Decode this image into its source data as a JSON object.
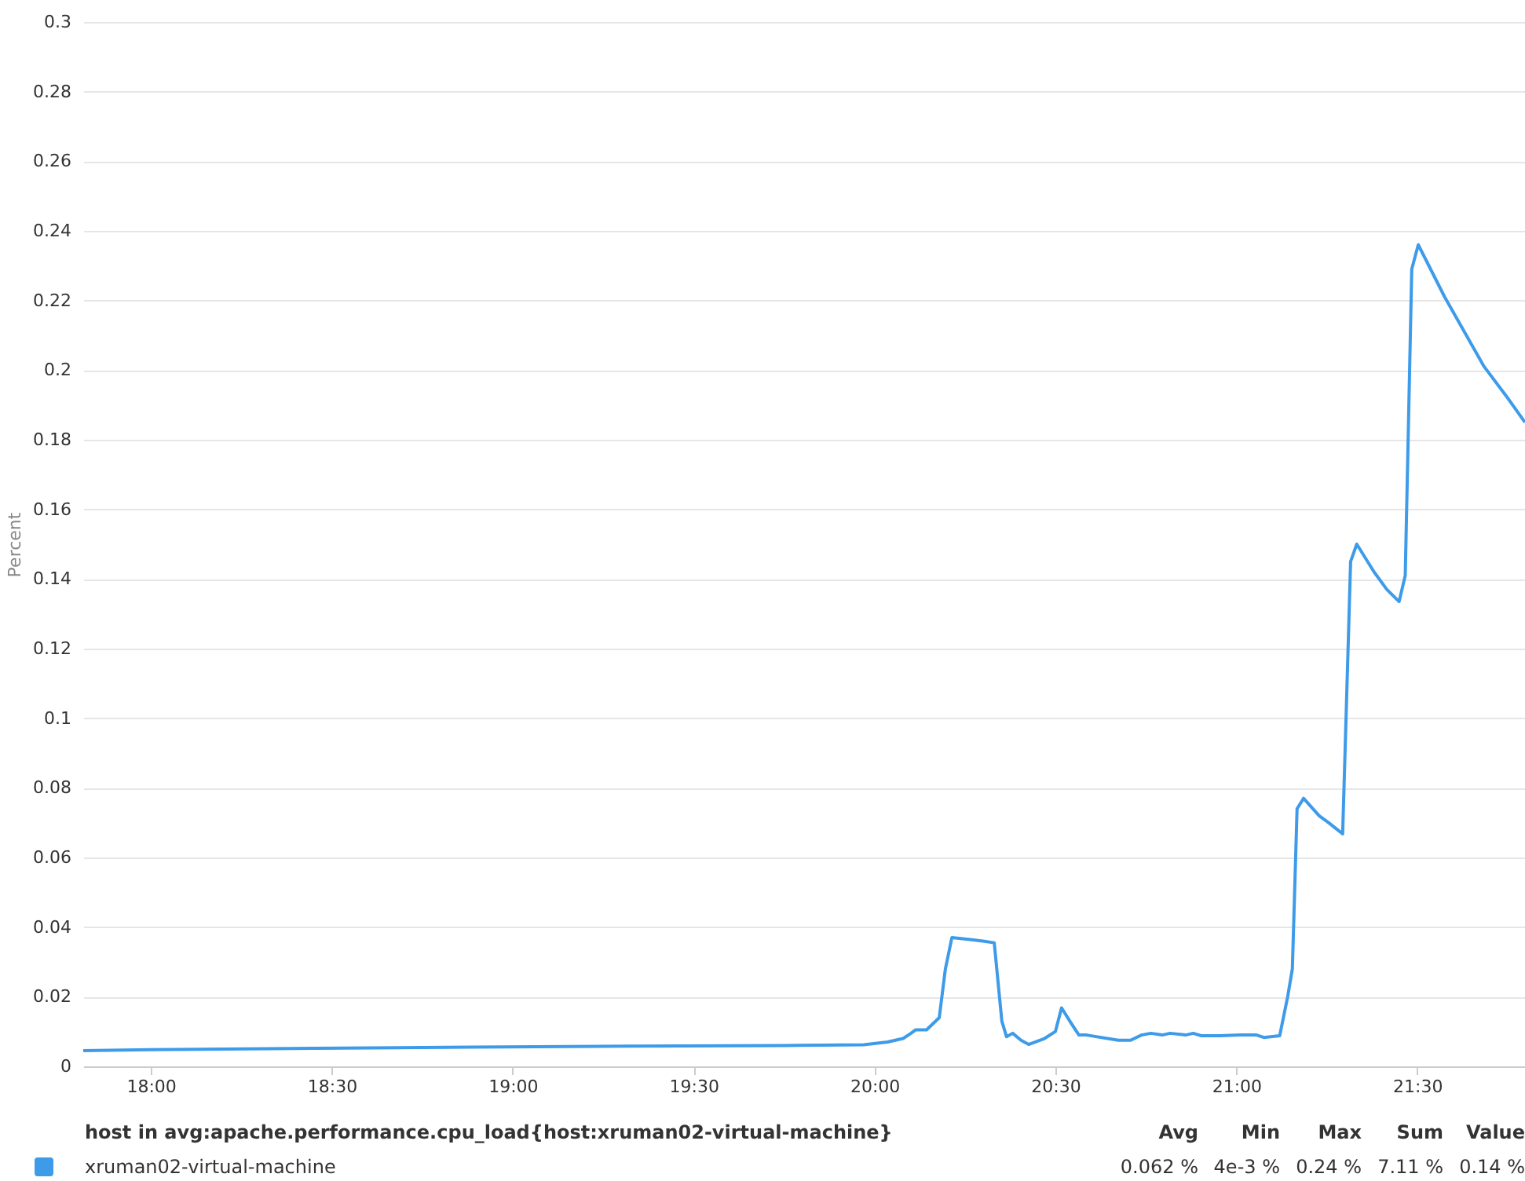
{
  "chart_data": {
    "type": "line",
    "ylabel": "Percent",
    "legend_title": "host in avg:apache.performance.cpu_load{host:xruman02-virtual-machine}",
    "legend": "bottom",
    "grid": "y",
    "marker": "none",
    "line_style": "solid",
    "xlim": [
      17.813,
      21.798
    ],
    "xticks": [
      {
        "value": 18,
        "label": "18:00"
      },
      {
        "value": 18.5,
        "label": "18:30"
      },
      {
        "value": 19,
        "label": "19:00"
      },
      {
        "value": 19.5,
        "label": "19:30"
      },
      {
        "value": 20,
        "label": "20:00"
      },
      {
        "value": 20.5,
        "label": "20:30"
      },
      {
        "value": 21,
        "label": "21:00"
      },
      {
        "value": 21.5,
        "label": "21:30"
      }
    ],
    "ylim": [
      0,
      0.3
    ],
    "yticks": [
      0,
      0.02,
      0.04,
      0.06,
      0.08,
      0.1,
      0.12,
      0.14,
      0.16,
      0.18,
      0.2,
      0.22,
      0.24,
      0.26,
      0.28,
      0.3
    ],
    "x": [
      17.813,
      18.0,
      18.451,
      18.885,
      19.319,
      19.753,
      19.97,
      20.036,
      20.079,
      20.101,
      20.114,
      20.144,
      20.179,
      20.196,
      20.214,
      20.274,
      20.3,
      20.331,
      20.352,
      20.365,
      20.382,
      20.405,
      20.426,
      20.47,
      20.5,
      20.517,
      20.543,
      20.565,
      20.586,
      20.674,
      20.708,
      20.738,
      20.764,
      20.795,
      20.817,
      20.86,
      20.881,
      20.903,
      20.955,
      21.011,
      21.056,
      21.076,
      21.12,
      21.142,
      21.155,
      21.168,
      21.186,
      21.229,
      21.255,
      21.294,
      21.316,
      21.333,
      21.381,
      21.416,
      21.45,
      21.467,
      21.485,
      21.503,
      21.576,
      21.685,
      21.75,
      21.798
    ],
    "series": [
      {
        "name": "xruman02-virtual-machine",
        "color": "#3d9be9",
        "values": [
          0.0045,
          0.0048,
          0.0052,
          0.0055,
          0.0058,
          0.006,
          0.0062,
          0.007,
          0.008,
          0.0095,
          0.0105,
          0.0105,
          0.014,
          0.028,
          0.037,
          0.0363,
          0.036,
          0.0355,
          0.013,
          0.0085,
          0.0095,
          0.0075,
          0.0063,
          0.008,
          0.01,
          0.0168,
          0.0125,
          0.009,
          0.009,
          0.0075,
          0.0075,
          0.009,
          0.0095,
          0.009,
          0.0095,
          0.009,
          0.0095,
          0.0088,
          0.0088,
          0.009,
          0.009,
          0.0083,
          0.0088,
          0.02,
          0.028,
          0.074,
          0.077,
          0.072,
          0.07,
          0.0668,
          0.145,
          0.15,
          0.142,
          0.137,
          0.1335,
          0.141,
          0.229,
          0.236,
          0.221,
          0.201,
          0.192,
          0.185
        ]
      }
    ],
    "annotations": [
      "Avg",
      "Min",
      "Max",
      "Sum",
      "Value",
      "0.062 %",
      "4e-3 %",
      "0.24 %",
      "7.11 %",
      "0.14 %"
    ]
  }
}
